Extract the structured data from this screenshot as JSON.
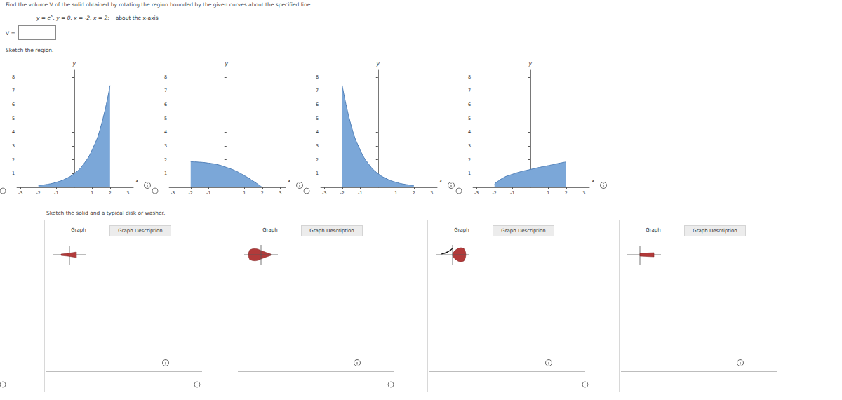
{
  "header": {
    "instruction": "Find the volume V of the solid obtained by rotating the region bounded by the given curves about the specified line.",
    "equations": {
      "before": "y = e",
      "sup": "x",
      "after": ",  y = 0,  x = -2,  x = 2;"
    },
    "about": "about the x-axis"
  },
  "answer_label": "V =",
  "region_prompt": "Sketch the region.",
  "chart_data": [
    {
      "type": "area",
      "color": "#7ba7d8",
      "xlabel": "x",
      "ylabel": "y",
      "x": [
        -2,
        -1.5,
        -1,
        -0.5,
        0,
        0.5,
        1,
        1.5,
        2
      ],
      "values": [
        0.14,
        0.22,
        0.37,
        0.61,
        1,
        1.65,
        2.72,
        4.48,
        7.39
      ],
      "xlim": [
        -3.2,
        3.3
      ],
      "xticks": [
        -3,
        -2,
        -1,
        1,
        2,
        3
      ],
      "ylim": [
        0,
        8.5
      ],
      "yticks": [
        1,
        2,
        3,
        4,
        5,
        6,
        7,
        8
      ]
    },
    {
      "type": "area",
      "color": "#7ba7d8",
      "xlabel": "x",
      "ylabel": "y",
      "x": [
        -2,
        -1.5,
        -1,
        -0.5,
        0,
        0.5,
        1,
        1.5,
        2
      ],
      "values": [
        1.86,
        1.83,
        1.76,
        1.65,
        1.45,
        1.2,
        0.85,
        0.45,
        0
      ],
      "xlim": [
        -3.2,
        3.3
      ],
      "xticks": [
        -3,
        -2,
        -1,
        1,
        2,
        3
      ],
      "ylim": [
        0,
        8.5
      ],
      "yticks": [
        1,
        2,
        3,
        4,
        5,
        6,
        7,
        8
      ]
    },
    {
      "type": "area",
      "color": "#7ba7d8",
      "xlabel": "x",
      "ylabel": "y",
      "x": [
        -2,
        -1.5,
        -1,
        -0.5,
        0,
        0.5,
        1,
        1.5,
        2
      ],
      "values": [
        7.39,
        4.48,
        2.72,
        1.65,
        1,
        0.61,
        0.37,
        0.22,
        0.14
      ],
      "xlim": [
        -3.2,
        3.3
      ],
      "xticks": [
        -3,
        -2,
        -1,
        1,
        2,
        3
      ],
      "ylim": [
        0,
        8.5
      ],
      "yticks": [
        1,
        2,
        3,
        4,
        5,
        6,
        7,
        8
      ]
    },
    {
      "type": "area",
      "color": "#7ba7d8",
      "xlabel": "x",
      "ylabel": "y",
      "x": [
        -2,
        -1.5,
        -1,
        -0.5,
        0,
        0.5,
        1,
        1.5,
        2
      ],
      "values": [
        0.25,
        0.7,
        0.95,
        1.15,
        1.3,
        1.45,
        1.58,
        1.72,
        1.85
      ],
      "xlim": [
        -3.2,
        3.3
      ],
      "xticks": [
        -3,
        -2,
        -1,
        1,
        2,
        3
      ],
      "ylim": [
        0,
        8.5
      ],
      "yticks": [
        1,
        2,
        3,
        4,
        5,
        6,
        7,
        8
      ]
    }
  ],
  "solid_prompt": "Sketch the solid and a typical disk or washer.",
  "panels": [
    {
      "tabs": [
        "Graph",
        "Graph Description"
      ]
    },
    {
      "tabs": [
        "Graph",
        "Graph Description"
      ]
    },
    {
      "tabs": [
        "Graph",
        "Graph Description"
      ]
    },
    {
      "tabs": [
        "Graph",
        "Graph Description"
      ]
    }
  ]
}
